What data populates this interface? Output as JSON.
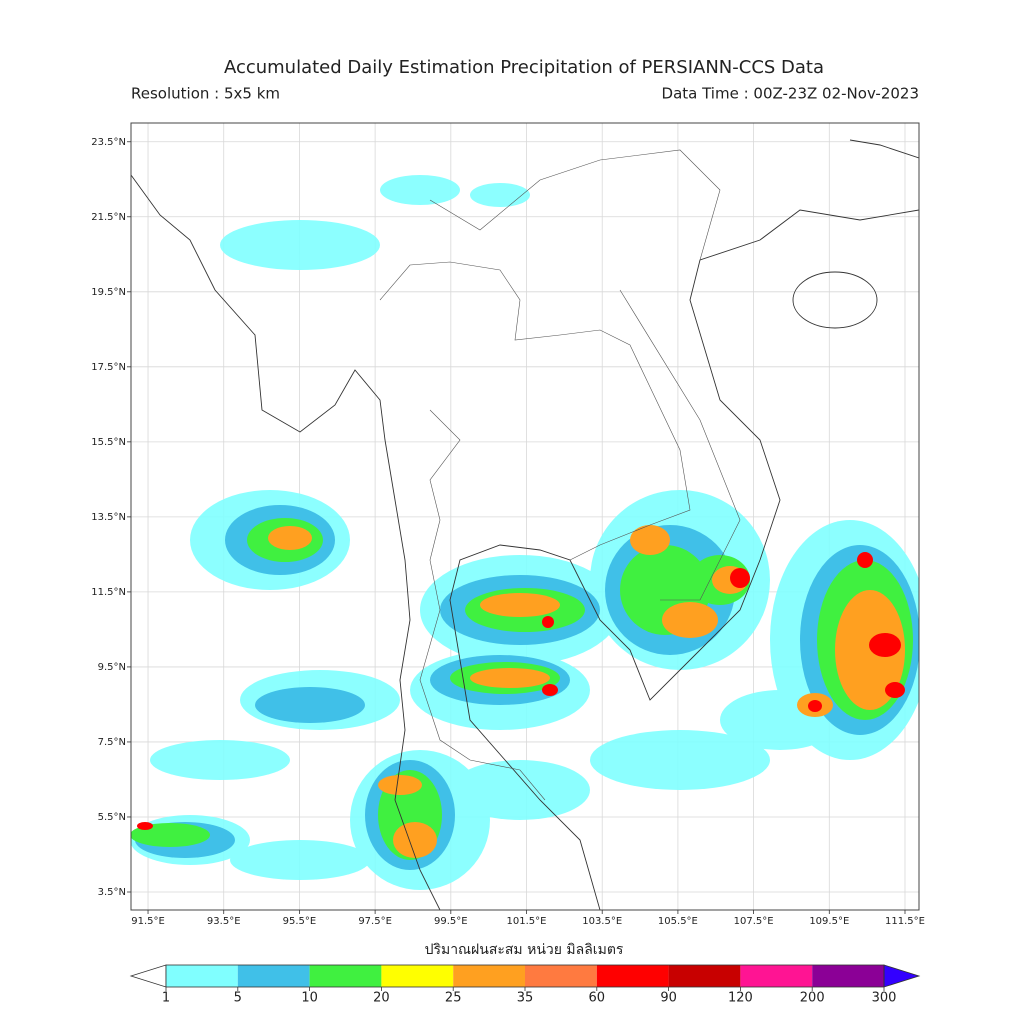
{
  "chart_data": {
    "type": "map",
    "title": "Accumulated Daily Estimation Precipitation of PERSIANN-CCS Data",
    "subtitle_left": "Resolution : 5x5 km",
    "subtitle_right": "Data Time : 00Z-23Z 02-Nov-2023",
    "xlim": [
      91.05,
      111.87
    ],
    "ylim": [
      3.02,
      24.0
    ],
    "xticks": [
      {
        "value": 91.5,
        "label": "91.5°E"
      },
      {
        "value": 93.5,
        "label": "93.5°E"
      },
      {
        "value": 95.5,
        "label": "95.5°E"
      },
      {
        "value": 97.5,
        "label": "97.5°E"
      },
      {
        "value": 99.5,
        "label": "99.5°E"
      },
      {
        "value": 101.5,
        "label": "101.5°E"
      },
      {
        "value": 103.5,
        "label": "103.5°E"
      },
      {
        "value": 105.5,
        "label": "105.5°E"
      },
      {
        "value": 107.5,
        "label": "107.5°E"
      },
      {
        "value": 109.5,
        "label": "109.5°E"
      },
      {
        "value": 111.5,
        "label": "111.5°E"
      }
    ],
    "yticks": [
      {
        "value": 3.5,
        "label": "3.5°N"
      },
      {
        "value": 5.5,
        "label": "5.5°N"
      },
      {
        "value": 7.5,
        "label": "7.5°N"
      },
      {
        "value": 9.5,
        "label": "9.5°N"
      },
      {
        "value": 11.5,
        "label": "11.5°N"
      },
      {
        "value": 13.5,
        "label": "13.5°N"
      },
      {
        "value": 15.5,
        "label": "15.5°N"
      },
      {
        "value": 17.5,
        "label": "17.5°N"
      },
      {
        "value": 19.5,
        "label": "19.5°N"
      },
      {
        "value": 21.5,
        "label": "21.5°N"
      },
      {
        "value": 23.5,
        "label": "23.5°N"
      }
    ],
    "grid": true,
    "colorbar": {
      "label": "ปริมาณฝนสะสม หน่วย มิลลิเมตร",
      "boundaries": [
        1,
        5,
        10,
        20,
        25,
        35,
        60,
        90,
        120,
        200,
        300
      ],
      "colors": [
        "#80ffff",
        "#40c0e8",
        "#40f040",
        "#ffff00",
        "#ffa020",
        "#ff7a40",
        "#ff0000",
        "#c80000",
        "#ff1493",
        "#8b0096"
      ],
      "under_color": "#ffffff",
      "over_color": "#3300ff"
    }
  }
}
